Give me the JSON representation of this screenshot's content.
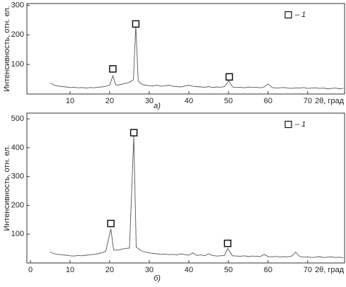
{
  "chart_data": [
    {
      "type": "line",
      "caption": "а)",
      "y_label": "Интенсивность, отн. ел.",
      "x_label": "2θ, град",
      "color": "#555555",
      "xlim": [
        -0.9,
        79.5
      ],
      "xticks": [
        10,
        20,
        30,
        40,
        50,
        60,
        70
      ],
      "ylim": [
        0,
        306
      ],
      "yticks": [
        100,
        200,
        300
      ],
      "x": [
        5,
        6,
        7,
        8,
        9,
        10,
        11,
        12,
        13,
        14,
        15,
        16,
        17,
        18,
        19,
        20,
        20.8,
        21.5,
        22,
        23,
        24,
        25,
        26,
        26.6,
        27.2,
        28,
        29,
        30,
        31,
        32,
        33,
        34,
        35,
        36,
        37,
        38,
        39,
        40,
        41,
        42,
        43,
        44,
        45,
        46,
        47,
        48,
        49,
        50.1,
        51,
        52,
        53,
        54,
        55,
        56,
        57,
        58,
        59,
        60,
        61,
        62,
        63,
        64,
        65,
        66,
        67,
        68,
        69,
        70,
        71,
        72,
        73,
        74,
        75,
        76,
        77,
        78,
        79
      ],
      "values": [
        38,
        30,
        27,
        25,
        24,
        22,
        23,
        21,
        22,
        20,
        22,
        21,
        23,
        24,
        26,
        30,
        62,
        32,
        30,
        33,
        36,
        40,
        48,
        232,
        45,
        34,
        30,
        28,
        27,
        30,
        26,
        28,
        30,
        26,
        25,
        24,
        27,
        30,
        26,
        25,
        24,
        23,
        25,
        22,
        24,
        23,
        25,
        45,
        24,
        22,
        23,
        21,
        24,
        22,
        23,
        21,
        24,
        34,
        22,
        20,
        21,
        22,
        20,
        19,
        21,
        20,
        22,
        19,
        20,
        21,
        19,
        20,
        18,
        19,
        20,
        18,
        19
      ],
      "markers": {
        "label": "– 1",
        "x": [
          20.8,
          26.6,
          50.2
        ],
        "y": [
          85,
          237,
          58
        ]
      },
      "legend": "upper right"
    },
    {
      "type": "line",
      "caption": "б)",
      "y_label": "Интенсивность, отн. ел.",
      "x_label": "2θ, град",
      "color": "#555555",
      "xlim": [
        -0.9,
        79.5
      ],
      "xticks": [
        0,
        10,
        20,
        30,
        40,
        50,
        60,
        70
      ],
      "ylim": [
        0,
        520
      ],
      "yticks": [
        100,
        200,
        300,
        400,
        500
      ],
      "x": [
        5,
        6,
        7,
        8,
        9,
        10,
        11,
        12,
        13,
        14,
        15,
        16,
        17,
        18,
        19,
        20.3,
        21,
        22,
        23,
        24,
        25,
        26.1,
        26.7,
        28,
        29,
        30,
        31,
        32,
        33,
        34,
        35,
        36,
        37,
        38,
        39,
        40,
        41,
        42,
        43,
        44,
        45,
        46,
        47,
        48,
        49,
        49.8,
        51,
        52,
        53,
        54,
        55,
        56,
        57,
        58,
        59,
        60,
        61,
        62,
        63,
        64,
        65,
        66,
        67,
        68,
        69,
        70,
        71,
        72,
        73,
        74,
        75,
        76,
        77,
        78,
        79
      ],
      "values": [
        38,
        32,
        30,
        28,
        27,
        25,
        24,
        26,
        25,
        27,
        28,
        30,
        32,
        35,
        40,
        118,
        45,
        44,
        48,
        50,
        52,
        440,
        55,
        42,
        38,
        35,
        33,
        32,
        30,
        31,
        29,
        30,
        28,
        32,
        29,
        27,
        35,
        26,
        28,
        25,
        32,
        26,
        24,
        25,
        26,
        50,
        25,
        24,
        23,
        25,
        22,
        24,
        23,
        22,
        30,
        22,
        21,
        23,
        20,
        22,
        21,
        24,
        38,
        22,
        20,
        21,
        19,
        20,
        22,
        19,
        20,
        21,
        19,
        20,
        18
      ],
      "markers": {
        "label": "– 1",
        "x": [
          20.3,
          26.1,
          49.8
        ],
        "y": [
          137,
          452,
          68
        ]
      },
      "legend": "upper right"
    }
  ]
}
